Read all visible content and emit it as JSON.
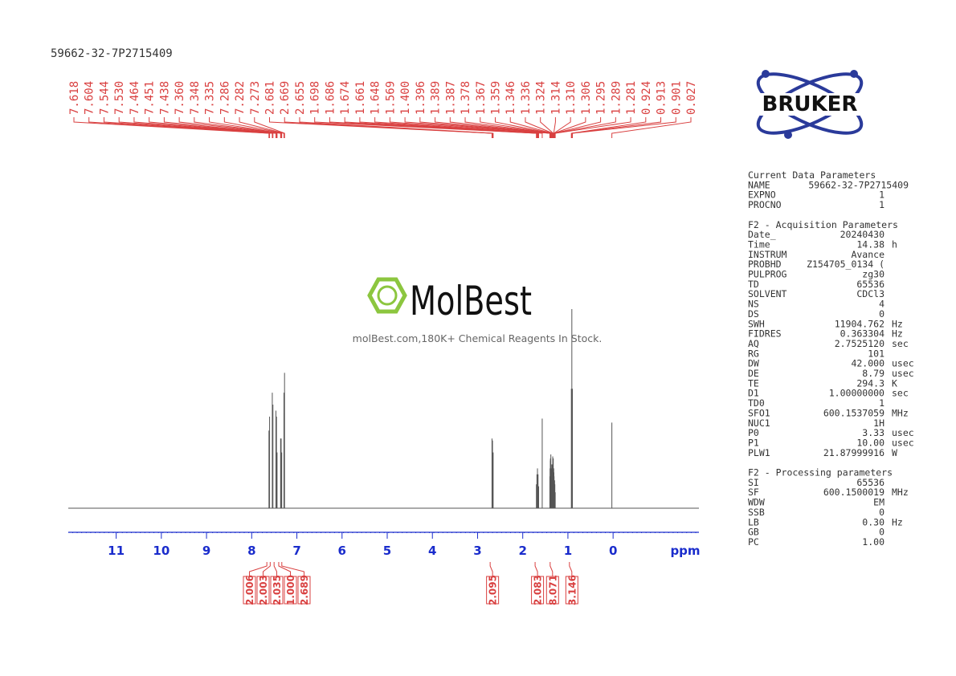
{
  "title": "59662-32-7P2715409",
  "logo": "BRUKER",
  "watermark": {
    "brand": "MolBest",
    "tagline": "molBest.com,180K+ Chemical Reagents In Stock."
  },
  "chart_data": {
    "type": "nmr",
    "xlabel": "ppm",
    "xlim": [
      12.06,
      -1.9
    ],
    "xticks": [
      11,
      10,
      9,
      8,
      7,
      6,
      5,
      4,
      3,
      2,
      1,
      0
    ],
    "ylim": [
      0,
      100
    ],
    "color": "#555555",
    "label_color": "#d94040",
    "axis_color": "#1a2ccc",
    "peaks": {
      "x": [
        7.618,
        7.604,
        7.544,
        7.53,
        7.464,
        7.451,
        7.438,
        7.36,
        7.348,
        7.335,
        7.286,
        7.282,
        7.273,
        2.681,
        2.669,
        2.655,
        1.698,
        1.686,
        1.674,
        1.661,
        1.648,
        1.569,
        1.4,
        1.396,
        1.389,
        1.387,
        1.378,
        1.367,
        1.359,
        1.346,
        1.336,
        1.324,
        1.314,
        1.31,
        1.306,
        1.295,
        1.289,
        1.281,
        0.924,
        0.913,
        0.901,
        0.027
      ],
      "values": [
        39,
        46,
        58,
        52,
        49,
        46,
        28,
        35,
        35,
        28,
        58,
        48,
        68,
        35,
        34,
        28,
        12,
        17,
        20,
        17,
        11,
        45,
        16,
        20,
        24,
        25,
        27,
        22,
        20,
        22,
        26,
        25,
        20,
        18,
        16,
        14,
        12,
        8,
        60,
        100,
        60,
        43
      ],
      "labels": [
        "7.618",
        "7.604",
        "7.544",
        "7.530",
        "7.464",
        "7.451",
        "7.438",
        "7.360",
        "7.348",
        "7.335",
        "7.286",
        "7.282",
        "7.273",
        "2.681",
        "2.669",
        "2.655",
        "1.698",
        "1.686",
        "1.674",
        "1.661",
        "1.648",
        "1.569",
        "1.400",
        "1.396",
        "1.389",
        "1.387",
        "1.378",
        "1.367",
        "1.359",
        "1.346",
        "1.336",
        "1.324",
        "1.314",
        "1.310",
        "1.306",
        "1.295",
        "1.289",
        "1.281",
        "0.924",
        "0.913",
        "0.901",
        "0.027"
      ]
    },
    "integrals": {
      "x": [
        7.611,
        7.537,
        7.451,
        7.348,
        7.28,
        2.668,
        1.673,
        1.34,
        0.913
      ],
      "labels": [
        "2.006",
        "2.003",
        "2.035",
        "1.000",
        "2.689",
        "2.095",
        "2.083",
        "8.071",
        "3.146"
      ]
    }
  },
  "parameters": [
    {
      "title": "Current Data Parameters",
      "rows": [
        [
          "NAME",
          "59662-32-7P2715409"
        ],
        [
          "EXPNO",
          "1"
        ],
        [
          "PROCNO",
          "1"
        ]
      ]
    },
    {
      "title": "F2 - Acquisition Parameters",
      "rows": [
        [
          "Date_",
          "20240430"
        ],
        [
          "Time",
          "14.38",
          "h"
        ],
        [
          "INSTRUM",
          "Avance"
        ],
        [
          "PROBHD",
          "Z154705_0134 ("
        ],
        [
          "PULPROG",
          "zg30"
        ],
        [
          "TD",
          "65536"
        ],
        [
          "SOLVENT",
          "CDCl3"
        ],
        [
          "NS",
          "4"
        ],
        [
          "DS",
          "0"
        ],
        [
          "SWH",
          "11904.762",
          "Hz"
        ],
        [
          "FIDRES",
          "0.363304",
          "Hz"
        ],
        [
          "AQ",
          "2.7525120",
          "sec"
        ],
        [
          "RG",
          "101"
        ],
        [
          "DW",
          "42.000",
          "usec"
        ],
        [
          "DE",
          "8.79",
          "usec"
        ],
        [
          "TE",
          "294.3",
          "K"
        ],
        [
          "D1",
          "1.00000000",
          "sec"
        ],
        [
          "TD0",
          "1"
        ],
        [
          "SFO1",
          "600.1537059",
          "MHz"
        ],
        [
          "NUC1",
          "1H"
        ],
        [
          "P0",
          "3.33",
          "usec"
        ],
        [
          "P1",
          "10.00",
          "usec"
        ],
        [
          "PLW1",
          "21.87999916",
          "W"
        ]
      ]
    },
    {
      "title": "F2 - Processing parameters",
      "rows": [
        [
          "SI",
          "65536"
        ],
        [
          "SF",
          "600.1500019",
          "MHz"
        ],
        [
          "WDW",
          "EM"
        ],
        [
          "SSB",
          "0"
        ],
        [
          "LB",
          "0.30",
          "Hz"
        ],
        [
          "GB",
          "0"
        ],
        [
          "PC",
          "1.00"
        ]
      ]
    }
  ]
}
